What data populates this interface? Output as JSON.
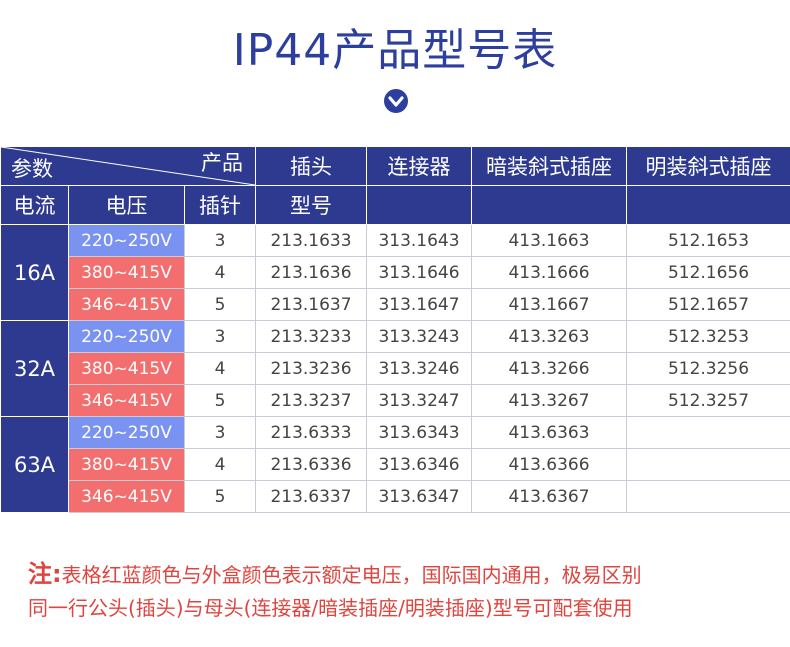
{
  "title": "IP44产品型号表",
  "colors": {
    "header_bg": "#2e3a8f",
    "blue_voltage": "#7b93f0",
    "red_voltage": "#f36f6f",
    "note": "#e0443e"
  },
  "icons": {
    "expand": "chevron-down-circle-icon"
  },
  "header": {
    "params": "参数",
    "product": "产品",
    "plug": "插头",
    "connector": "连接器",
    "concealed_socket": "暗装斜式插座",
    "surface_socket": "明装斜式插座",
    "current": "电流",
    "voltage": "电压",
    "pins": "插针",
    "model": "型号"
  },
  "groups": [
    {
      "current": "16A",
      "rows": [
        {
          "voltage": "220~250V",
          "color": "blue",
          "pins": "3",
          "plug": "213.1633",
          "connector": "313.1643",
          "concealed": "413.1663",
          "surface": "512.1653"
        },
        {
          "voltage": "380~415V",
          "color": "red",
          "pins": "4",
          "plug": "213.1636",
          "connector": "313.1646",
          "concealed": "413.1666",
          "surface": "512.1656"
        },
        {
          "voltage": "346~415V",
          "color": "red",
          "pins": "5",
          "plug": "213.1637",
          "connector": "313.1647",
          "concealed": "413.1667",
          "surface": "512.1657"
        }
      ]
    },
    {
      "current": "32A",
      "rows": [
        {
          "voltage": "220~250V",
          "color": "blue",
          "pins": "3",
          "plug": "213.3233",
          "connector": "313.3243",
          "concealed": "413.3263",
          "surface": "512.3253"
        },
        {
          "voltage": "380~415V",
          "color": "red",
          "pins": "4",
          "plug": "213.3236",
          "connector": "313.3246",
          "concealed": "413.3266",
          "surface": "512.3256"
        },
        {
          "voltage": "346~415V",
          "color": "red",
          "pins": "5",
          "plug": "213.3237",
          "connector": "313.3247",
          "concealed": "413.3267",
          "surface": "512.3257"
        }
      ]
    },
    {
      "current": "63A",
      "rows": [
        {
          "voltage": "220~250V",
          "color": "blue",
          "pins": "3",
          "plug": "213.6333",
          "connector": "313.6343",
          "concealed": "413.6363",
          "surface": ""
        },
        {
          "voltage": "380~415V",
          "color": "red",
          "pins": "4",
          "plug": "213.6336",
          "connector": "313.6346",
          "concealed": "413.6366",
          "surface": ""
        },
        {
          "voltage": "346~415V",
          "color": "red",
          "pins": "5",
          "plug": "213.6337",
          "connector": "313.6347",
          "concealed": "413.6367",
          "surface": ""
        }
      ]
    }
  ],
  "note": {
    "lead": "注:",
    "line1": "表格红蓝颜色与外盒颜色表示额定电压，国际国内通用，极易区别",
    "line2": "同一行公头(插头)与母头(连接器/暗装插座/明装插座)型号可配套使用"
  }
}
